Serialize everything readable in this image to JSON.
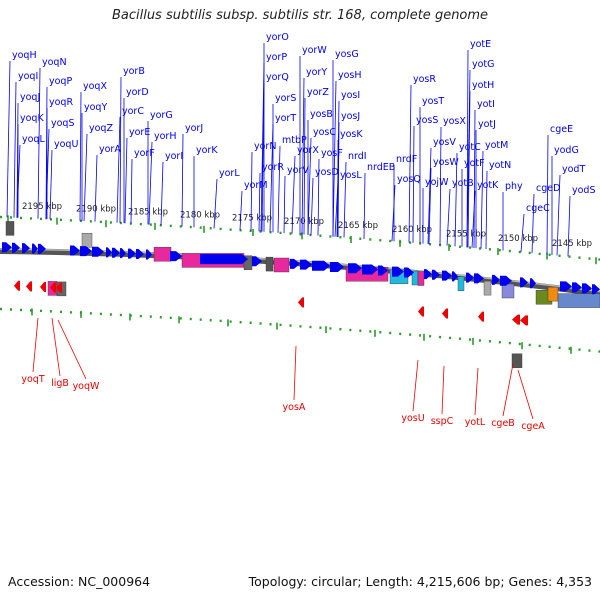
{
  "title": "Bacillus subtilis subsp. subtilis str. 168, complete genome",
  "footer": {
    "accession": "Accession: NC_000964",
    "topology": "Topology: circular; Length: 4,215,606 bp; Genes: 4,353"
  },
  "colors": {
    "forward_gene": "#0000ee",
    "reverse_gene": "#ee0000",
    "backbone": "#7a7a7a",
    "tick": "#2a9a2a",
    "feature_magenta": "#e8289c",
    "feature_cyan": "#22b8e0",
    "feature_gray": "#9a9a9a",
    "feature_olive": "#6a8a20",
    "feature_orange": "#f08a10"
  },
  "scale_labels": [
    "2195 kbp",
    "2190 kbp",
    "2185 kbp",
    "2180 kbp",
    "2175 kbp",
    "2170 kbp",
    "2165 kbp",
    "2160 kbp",
    "2155 kbp",
    "2150 kbp",
    "2145 kbp"
  ],
  "forward_genes": [
    "yoqH",
    "yoqI",
    "yoqJ",
    "yoqK",
    "yoqL",
    "yoqN",
    "yoqP",
    "yoqR",
    "yoqS",
    "yoqU",
    "yoqX",
    "yoqY",
    "yoqZ",
    "yorA",
    "yorB",
    "yorD",
    "yorC",
    "yorE",
    "yorF",
    "yorG",
    "yorH",
    "yorI",
    "yorJ",
    "yorK",
    "yorL",
    "yorM",
    "yorN",
    "yorO",
    "yorP",
    "yorQ",
    "yorR",
    "yorS",
    "yorT",
    "mtbP",
    "yorV",
    "yorW",
    "yorX",
    "yorY",
    "yorZ",
    "yosB",
    "yosC",
    "yosD",
    "yosF",
    "yosG",
    "yosH",
    "yosI",
    "yosJ",
    "yosK",
    "yosL",
    "nrdI",
    "nrdEB",
    "nrdF",
    "yosQ",
    "yosR",
    "yosS",
    "yosT",
    "yosV",
    "yosW",
    "yosX",
    "yojW",
    "yotB",
    "yotC",
    "yotE",
    "yotF",
    "yotG",
    "yotH",
    "yotI",
    "yotJ",
    "yotK",
    "yotM",
    "yotN",
    "phy",
    "cgeC",
    "cgeD",
    "cgeE",
    "yodG",
    "yodT",
    "yodS"
  ],
  "reverse_genes": [
    "yoqT",
    "ligB",
    "yoqW",
    "yosA",
    "yosU",
    "sspC",
    "yotL",
    "cgeB",
    "cgeA"
  ]
}
